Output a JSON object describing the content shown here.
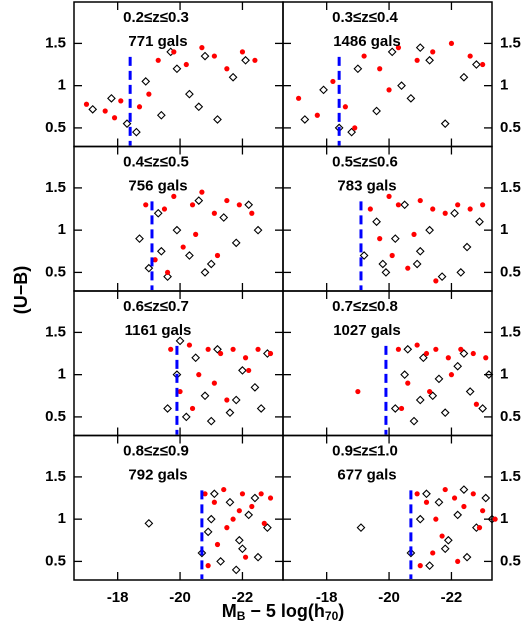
{
  "ylabel": "(U−B)",
  "xlabel_parts": [
    "M",
    "B",
    " − 5 log(h",
    "70",
    ")"
  ],
  "chart_data": [
    {
      "type": "scatter",
      "title": "0.2≤z≤0.3",
      "subtitle": "771 gals",
      "xlim": [
        -16.6,
        -23.3
      ],
      "ylim": [
        0.28,
        1.99
      ],
      "xticks": [
        -18,
        -20,
        -22
      ],
      "yticks": [
        0.5,
        1,
        1.5
      ],
      "vline": {
        "value": -18.4,
        "color": "#0000ff"
      },
      "series": [
        {
          "color": "#000000",
          "marker": "open-diamond",
          "x": [
            -17.2,
            -17.8,
            -18.3,
            -18.9,
            -19.4,
            -19.9,
            -20.3,
            -20.8,
            -21.2,
            -21.7,
            -22.1,
            -18.6,
            -19.7,
            -20.6
          ],
          "y": [
            0.72,
            0.85,
            0.55,
            1.05,
            0.65,
            1.2,
            0.9,
            1.35,
            0.6,
            1.1,
            1.3,
            0.45,
            1.4,
            0.75
          ]
        },
        {
          "color": "#ff0000",
          "marker": "filled-circle",
          "x": [
            -17.0,
            -17.6,
            -18.1,
            -18.7,
            -19.3,
            -19.8,
            -20.2,
            -20.7,
            -21.1,
            -21.5,
            -22.0,
            -22.4,
            -17.9,
            -19.0
          ],
          "y": [
            0.78,
            0.7,
            0.82,
            0.75,
            1.3,
            1.4,
            1.25,
            1.45,
            1.35,
            1.2,
            1.4,
            1.3,
            0.62,
            0.9
          ]
        }
      ]
    },
    {
      "type": "scatter",
      "title": "0.3≤z≤0.4",
      "subtitle": "1486 gals",
      "xlim": [
        -16.6,
        -23.3
      ],
      "ylim": [
        0.28,
        1.99
      ],
      "xticks": [
        -18,
        -20,
        -22
      ],
      "yticks": [
        0.5,
        1,
        1.5
      ],
      "vline": {
        "value": -18.4,
        "color": "#0000ff"
      },
      "series": [
        {
          "color": "#000000",
          "marker": "open-diamond",
          "x": [
            -17.3,
            -17.9,
            -18.4,
            -19.0,
            -19.6,
            -20.1,
            -20.7,
            -21.3,
            -21.8,
            -22.4,
            -18.8,
            -20.4,
            -21.0,
            -22.8
          ],
          "y": [
            0.6,
            0.95,
            0.5,
            1.2,
            0.7,
            1.4,
            0.85,
            1.3,
            0.55,
            1.1,
            0.45,
            1.0,
            1.45,
            1.25
          ]
        },
        {
          "color": "#ff0000",
          "marker": "filled-circle",
          "x": [
            -17.1,
            -17.7,
            -18.2,
            -18.6,
            -19.2,
            -19.7,
            -20.3,
            -20.9,
            -21.4,
            -22.0,
            -22.6,
            -23.0,
            -18.9,
            -20.0
          ],
          "y": [
            0.85,
            0.65,
            1.05,
            0.75,
            1.35,
            1.2,
            1.45,
            1.3,
            1.4,
            1.5,
            1.35,
            1.25,
            0.5,
            0.95
          ]
        }
      ]
    },
    {
      "type": "scatter",
      "title": "0.4≤z≤0.5",
      "subtitle": "756 gals",
      "xlim": [
        -16.6,
        -23.3
      ],
      "ylim": [
        0.28,
        1.99
      ],
      "xticks": [
        -18,
        -20,
        -22
      ],
      "yticks": [
        0.5,
        1,
        1.5
      ],
      "vline": {
        "value": -19.1,
        "color": "#0000ff"
      },
      "series": [
        {
          "color": "#000000",
          "marker": "open-diamond",
          "x": [
            -18.7,
            -19.0,
            -19.3,
            -19.6,
            -19.9,
            -20.3,
            -20.6,
            -21.0,
            -21.4,
            -21.8,
            -22.2,
            -19.4,
            -20.8,
            -22.5
          ],
          "y": [
            0.9,
            0.55,
            1.2,
            0.45,
            1.0,
            0.7,
            1.35,
            0.6,
            1.15,
            0.85,
            1.3,
            0.75,
            0.5,
            1.0
          ]
        },
        {
          "color": "#ff0000",
          "marker": "filled-circle",
          "x": [
            -18.9,
            -19.2,
            -19.5,
            -19.8,
            -20.1,
            -20.4,
            -20.7,
            -21.1,
            -21.5,
            -21.9,
            -22.3,
            -19.6,
            -20.5,
            -21.2
          ],
          "y": [
            1.3,
            0.65,
            1.25,
            1.4,
            0.8,
            1.3,
            1.45,
            1.2,
            1.35,
            1.3,
            1.2,
            0.5,
            0.95,
            0.7
          ]
        }
      ]
    },
    {
      "type": "scatter",
      "title": "0.5≤z≤0.6",
      "subtitle": "783 gals",
      "xlim": [
        -16.6,
        -23.3
      ],
      "ylim": [
        0.28,
        1.99
      ],
      "xticks": [
        -18,
        -20,
        -22
      ],
      "yticks": [
        0.5,
        1,
        1.5
      ],
      "vline": {
        "value": -19.1,
        "color": "#0000ff"
      },
      "series": [
        {
          "color": "#000000",
          "marker": "open-diamond",
          "x": [
            -19.2,
            -19.6,
            -19.9,
            -20.2,
            -20.5,
            -20.9,
            -21.3,
            -21.7,
            -22.1,
            -22.5,
            -22.9,
            -19.8,
            -21.0,
            -22.3
          ],
          "y": [
            0.7,
            1.1,
            0.5,
            0.9,
            1.3,
            0.6,
            1.0,
            0.45,
            1.2,
            0.8,
            1.1,
            0.6,
            0.75,
            0.5
          ]
        },
        {
          "color": "#ff0000",
          "marker": "filled-circle",
          "x": [
            -19.4,
            -19.7,
            -20.0,
            -20.3,
            -20.6,
            -21.0,
            -21.4,
            -21.8,
            -22.2,
            -22.6,
            -23.0,
            -20.1,
            -20.8,
            -21.5
          ],
          "y": [
            1.25,
            0.9,
            1.4,
            1.3,
            0.55,
            1.35,
            1.25,
            1.2,
            1.3,
            1.25,
            1.3,
            0.7,
            0.95,
            0.4
          ]
        }
      ]
    },
    {
      "type": "scatter",
      "title": "0.6≤z≤0.7",
      "subtitle": "1161 gals",
      "xlim": [
        -16.6,
        -23.3
      ],
      "ylim": [
        0.28,
        1.99
      ],
      "xticks": [
        -18,
        -20,
        -22
      ],
      "yticks": [
        0.5,
        1,
        1.5
      ],
      "vline": {
        "value": -19.9,
        "color": "#0000ff"
      },
      "series": [
        {
          "color": "#000000",
          "marker": "open-diamond",
          "x": [
            -19.6,
            -19.9,
            -20.2,
            -20.5,
            -20.8,
            -21.2,
            -21.6,
            -22.0,
            -22.4,
            -22.8,
            -20.0,
            -21.0,
            -21.8,
            -22.6
          ],
          "y": [
            0.6,
            1.0,
            0.5,
            1.2,
            0.75,
            1.3,
            0.55,
            1.05,
            0.85,
            1.25,
            1.4,
            0.45,
            0.7,
            0.6
          ]
        },
        {
          "color": "#ff0000",
          "marker": "filled-circle",
          "x": [
            -19.7,
            -20.0,
            -20.3,
            -20.6,
            -20.9,
            -21.3,
            -21.7,
            -22.1,
            -22.5,
            -22.9,
            -20.4,
            -21.1,
            -21.5,
            -22.2
          ],
          "y": [
            1.3,
            0.8,
            1.35,
            1.0,
            1.3,
            1.25,
            1.3,
            1.2,
            1.3,
            1.25,
            0.6,
            0.9,
            0.7,
            1.05
          ]
        }
      ]
    },
    {
      "type": "scatter",
      "title": "0.7≤z≤0.8",
      "subtitle": "1027 gals",
      "xlim": [
        -16.6,
        -23.3
      ],
      "ylim": [
        0.28,
        1.99
      ],
      "xticks": [
        -18,
        -20,
        -22
      ],
      "yticks": [
        0.5,
        1,
        1.5
      ],
      "vline": {
        "value": -19.9,
        "color": "#0000ff"
      },
      "series": [
        {
          "color": "#000000",
          "marker": "open-diamond",
          "x": [
            -20.2,
            -20.5,
            -20.8,
            -21.1,
            -21.4,
            -21.8,
            -22.2,
            -22.6,
            -23.0,
            -20.6,
            -21.6,
            -22.4,
            -23.2,
            -21.0
          ],
          "y": [
            0.6,
            1.0,
            0.45,
            1.2,
            0.75,
            0.55,
            1.1,
            0.8,
            0.6,
            1.3,
            0.95,
            1.25,
            1.0,
            0.7
          ]
        },
        {
          "color": "#ff0000",
          "marker": "filled-circle",
          "x": [
            -19.0,
            -20.3,
            -20.6,
            -20.9,
            -21.2,
            -21.5,
            -21.9,
            -22.3,
            -22.7,
            -23.1,
            -20.4,
            -21.3,
            -22.0,
            -22.8
          ],
          "y": [
            0.8,
            1.3,
            0.9,
            1.35,
            1.25,
            1.3,
            1.2,
            1.3,
            1.25,
            1.2,
            0.6,
            0.8,
            1.0,
            0.65
          ]
        }
      ]
    },
    {
      "type": "scatter",
      "title": "0.8≤z≤0.9",
      "subtitle": "792 gals",
      "xlim": [
        -16.6,
        -23.3
      ],
      "ylim": [
        0.28,
        1.99
      ],
      "xticks": [
        -18,
        -20,
        -22
      ],
      "yticks": [
        0.5,
        1,
        1.5
      ],
      "vline": {
        "value": -20.7,
        "color": "#0000ff"
      },
      "series": [
        {
          "color": "#000000",
          "marker": "open-diamond",
          "x": [
            -19.0,
            -20.7,
            -21.0,
            -21.3,
            -21.6,
            -21.9,
            -22.2,
            -22.5,
            -22.8,
            -21.1,
            -21.8,
            -22.4,
            -20.9,
            -22.0
          ],
          "y": [
            0.95,
            0.6,
            1.0,
            0.5,
            1.2,
            0.75,
            1.05,
            0.55,
            0.9,
            1.3,
            0.4,
            1.25,
            0.85,
            0.65
          ]
        },
        {
          "color": "#ff0000",
          "marker": "filled-circle",
          "x": [
            -20.8,
            -21.1,
            -21.4,
            -21.7,
            -22.0,
            -22.3,
            -22.6,
            -22.9,
            -21.2,
            -21.5,
            -22.1,
            -22.7,
            -20.9,
            -21.9
          ],
          "y": [
            1.3,
            1.2,
            1.35,
            1.0,
            1.3,
            1.15,
            1.3,
            1.25,
            0.7,
            0.9,
            0.55,
            0.95,
            0.45,
            1.1
          ]
        }
      ]
    },
    {
      "type": "scatter",
      "title": "0.9≤z≤1.0",
      "subtitle": "677 gals",
      "xlim": [
        -16.6,
        -23.3
      ],
      "ylim": [
        0.28,
        1.99
      ],
      "xticks": [
        -18,
        -20,
        -22
      ],
      "yticks": [
        0.5,
        1,
        1.5
      ],
      "vline": {
        "value": -20.7,
        "color": "#0000ff"
      },
      "series": [
        {
          "color": "#000000",
          "marker": "open-diamond",
          "x": [
            -19.1,
            -20.7,
            -21.0,
            -21.3,
            -21.6,
            -21.9,
            -22.2,
            -22.5,
            -22.8,
            -23.1,
            -21.2,
            -21.8,
            -22.4,
            -23.3
          ],
          "y": [
            0.9,
            0.6,
            1.0,
            0.45,
            1.2,
            0.75,
            1.05,
            0.55,
            0.9,
            1.25,
            1.3,
            0.65,
            1.35,
            1.0
          ]
        },
        {
          "color": "#ff0000",
          "marker": "filled-circle",
          "x": [
            -20.9,
            -21.2,
            -21.5,
            -21.8,
            -22.1,
            -22.4,
            -22.7,
            -23.0,
            -21.4,
            -21.7,
            -22.2,
            -22.9,
            -21.0,
            -23.4
          ],
          "y": [
            1.3,
            1.2,
            1.0,
            1.35,
            1.25,
            1.15,
            1.3,
            1.1,
            0.6,
            0.8,
            0.5,
            0.9,
            0.45,
            1.0
          ]
        }
      ]
    }
  ]
}
